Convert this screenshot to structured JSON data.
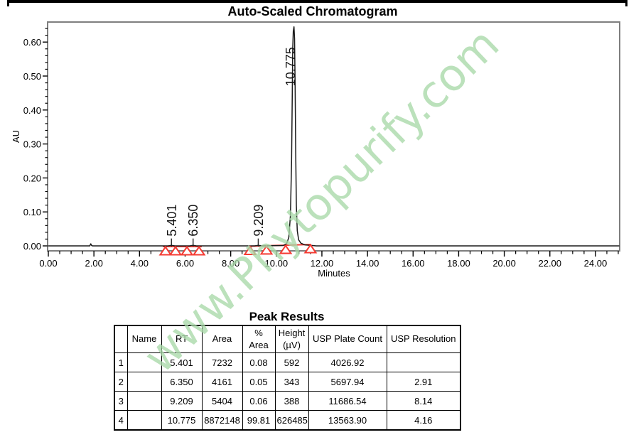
{
  "window": {
    "title": "Auto-Scaled Chromatogram"
  },
  "watermark": {
    "text": "www.Phytopurify.com",
    "color": "#a9d9a9"
  },
  "chart_data": {
    "type": "line",
    "title": "Auto-Scaled Chromatogram",
    "xlabel": "Minutes",
    "ylabel": "AU",
    "xlim": [
      0,
      25.06
    ],
    "ylim": [
      -0.015,
      0.659
    ],
    "grid": false,
    "x_major_ticks": [
      0,
      2,
      4,
      6,
      8,
      10,
      12,
      14,
      16,
      18,
      20,
      22,
      24
    ],
    "x_tick_labels": [
      "0.00",
      "2.00",
      "4.00",
      "6.00",
      "8.00",
      "10.00",
      "12.00",
      "14.00",
      "16.00",
      "18.00",
      "20.00",
      "22.00",
      "24.00"
    ],
    "x_minor_step": 0.5,
    "y_major_ticks": [
      0,
      0.1,
      0.2,
      0.3,
      0.4,
      0.5,
      0.6
    ],
    "y_tick_labels": [
      "0.00",
      "0.10",
      "0.20",
      "0.30",
      "0.40",
      "0.50",
      "0.60"
    ],
    "y_minor_step": 0.02,
    "trace": [
      [
        0,
        0
      ],
      [
        1.82,
        0
      ],
      [
        1.86,
        0.006
      ],
      [
        1.9,
        0.001
      ],
      [
        1.94,
        0
      ],
      [
        5.25,
        0
      ],
      [
        5.401,
        0.0015
      ],
      [
        5.55,
        0
      ],
      [
        6.2,
        0
      ],
      [
        6.35,
        0.0015
      ],
      [
        6.5,
        0
      ],
      [
        9.05,
        0
      ],
      [
        9.209,
        0.0015
      ],
      [
        9.36,
        0
      ],
      [
        10.3,
        0.001
      ],
      [
        10.45,
        0.006
      ],
      [
        10.55,
        0.025
      ],
      [
        10.62,
        0.09
      ],
      [
        10.67,
        0.25
      ],
      [
        10.7,
        0.45
      ],
      [
        10.72,
        0.58
      ],
      [
        10.745,
        0.632
      ],
      [
        10.775,
        0.645
      ],
      [
        10.8,
        0.61
      ],
      [
        10.825,
        0.47
      ],
      [
        10.85,
        0.28
      ],
      [
        10.88,
        0.12
      ],
      [
        10.92,
        0.045
      ],
      [
        10.98,
        0.018
      ],
      [
        11.08,
        0.008
      ],
      [
        11.25,
        0.003
      ],
      [
        11.5,
        0.0015
      ],
      [
        11.75,
        0
      ],
      [
        25.05,
        0
      ]
    ],
    "peaks": [
      {
        "label": "5.401",
        "rt": 5.401,
        "label_bottom_au": 0.028,
        "drop_line": true,
        "label_dx": 0
      },
      {
        "label": "6.350",
        "rt": 6.35,
        "label_bottom_au": 0.028,
        "drop_line": true,
        "label_dx": 0
      },
      {
        "label": "9.209",
        "rt": 9.209,
        "label_bottom_au": 0.028,
        "drop_line": true,
        "label_dx": 0
      },
      {
        "label": "10.775",
        "rt": 10.775,
        "label_bottom_au": 0.47,
        "drop_line": false,
        "label_dx": -5
      }
    ],
    "integration": {
      "color": "#f53b33",
      "baseline_segments": [
        {
          "x1": 5.02,
          "y1": 0.0,
          "x2": 6.73,
          "y2": 0.0
        },
        {
          "x1": 8.82,
          "y1": 0.001,
          "x2": 11.53,
          "y2": 0.0063
        }
      ],
      "triangles": [
        {
          "x": 5.14,
          "segment": 0
        },
        {
          "x": 5.58,
          "segment": 0
        },
        {
          "x": 6.08,
          "segment": 0
        },
        {
          "x": 6.61,
          "segment": 0
        },
        {
          "x": 8.85,
          "segment": 1
        },
        {
          "x": 9.57,
          "segment": 1
        },
        {
          "x": 10.41,
          "segment": 1
        },
        {
          "x": 11.5,
          "segment": 1
        }
      ]
    }
  },
  "table": {
    "title": "Peak Results",
    "columns": [
      "",
      "Name",
      "RT",
      "Area",
      "% Area",
      "Height\n(µV)",
      "USP Plate Count",
      "USP Resolution"
    ],
    "rows": [
      [
        "1",
        "",
        "5.401",
        "7232",
        "0.08",
        "592",
        "4026.92",
        ""
      ],
      [
        "2",
        "",
        "6.350",
        "4161",
        "0.05",
        "343",
        "5697.94",
        "2.91"
      ],
      [
        "3",
        "",
        "9.209",
        "5404",
        "0.06",
        "388",
        "11686.54",
        "8.14"
      ],
      [
        "4",
        "",
        "10.775",
        "8872148",
        "99.81",
        "626485",
        "13563.90",
        "4.16"
      ]
    ]
  }
}
